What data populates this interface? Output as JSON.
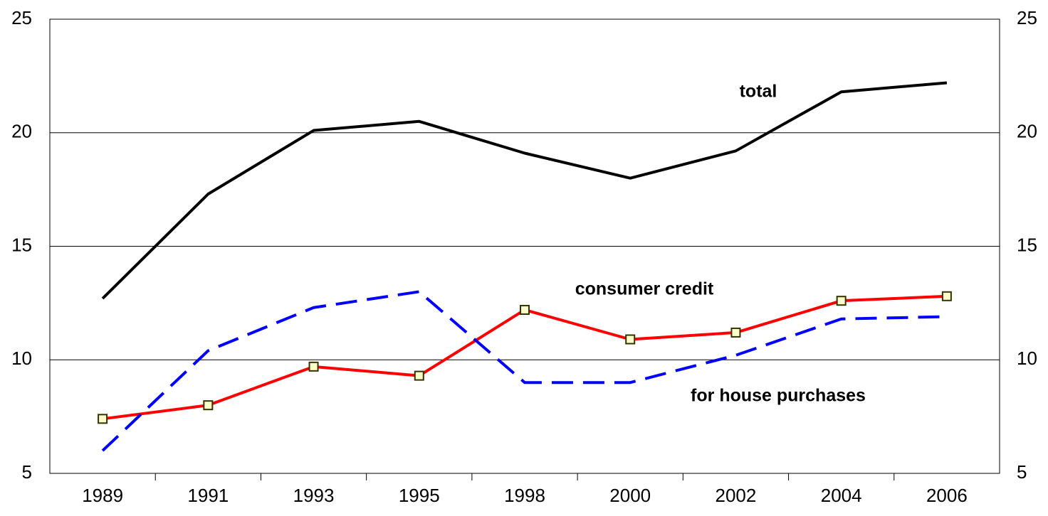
{
  "chart_data": {
    "type": "line",
    "categories": [
      "1989",
      "1991",
      "1993",
      "1995",
      "1998",
      "2000",
      "2002",
      "2004",
      "2006"
    ],
    "series": [
      {
        "name": "total",
        "color": "#000000",
        "style": "solid",
        "values": [
          12.7,
          17.3,
          20.1,
          20.5,
          19.1,
          18.0,
          19.2,
          21.8,
          22.2
        ]
      },
      {
        "name": "consumer credit",
        "color": "#ff0000",
        "style": "solid",
        "marker": "square",
        "marker_fill": "#ffffcc",
        "marker_edge": "#333300",
        "values": [
          7.4,
          8.0,
          9.7,
          9.3,
          12.2,
          10.9,
          11.2,
          12.6,
          12.8
        ]
      },
      {
        "name": "for house purchases",
        "color": "#0000ff",
        "style": "dashed",
        "values": [
          6.0,
          10.4,
          12.3,
          13.0,
          9.0,
          9.0,
          10.2,
          11.8,
          11.9
        ]
      }
    ],
    "ylim": [
      5,
      25
    ],
    "yticks": [
      5,
      10,
      15,
      20,
      25
    ],
    "y2lim": [
      5,
      25
    ],
    "y2ticks": [
      5,
      10,
      15,
      20,
      25
    ],
    "grid": true
  }
}
